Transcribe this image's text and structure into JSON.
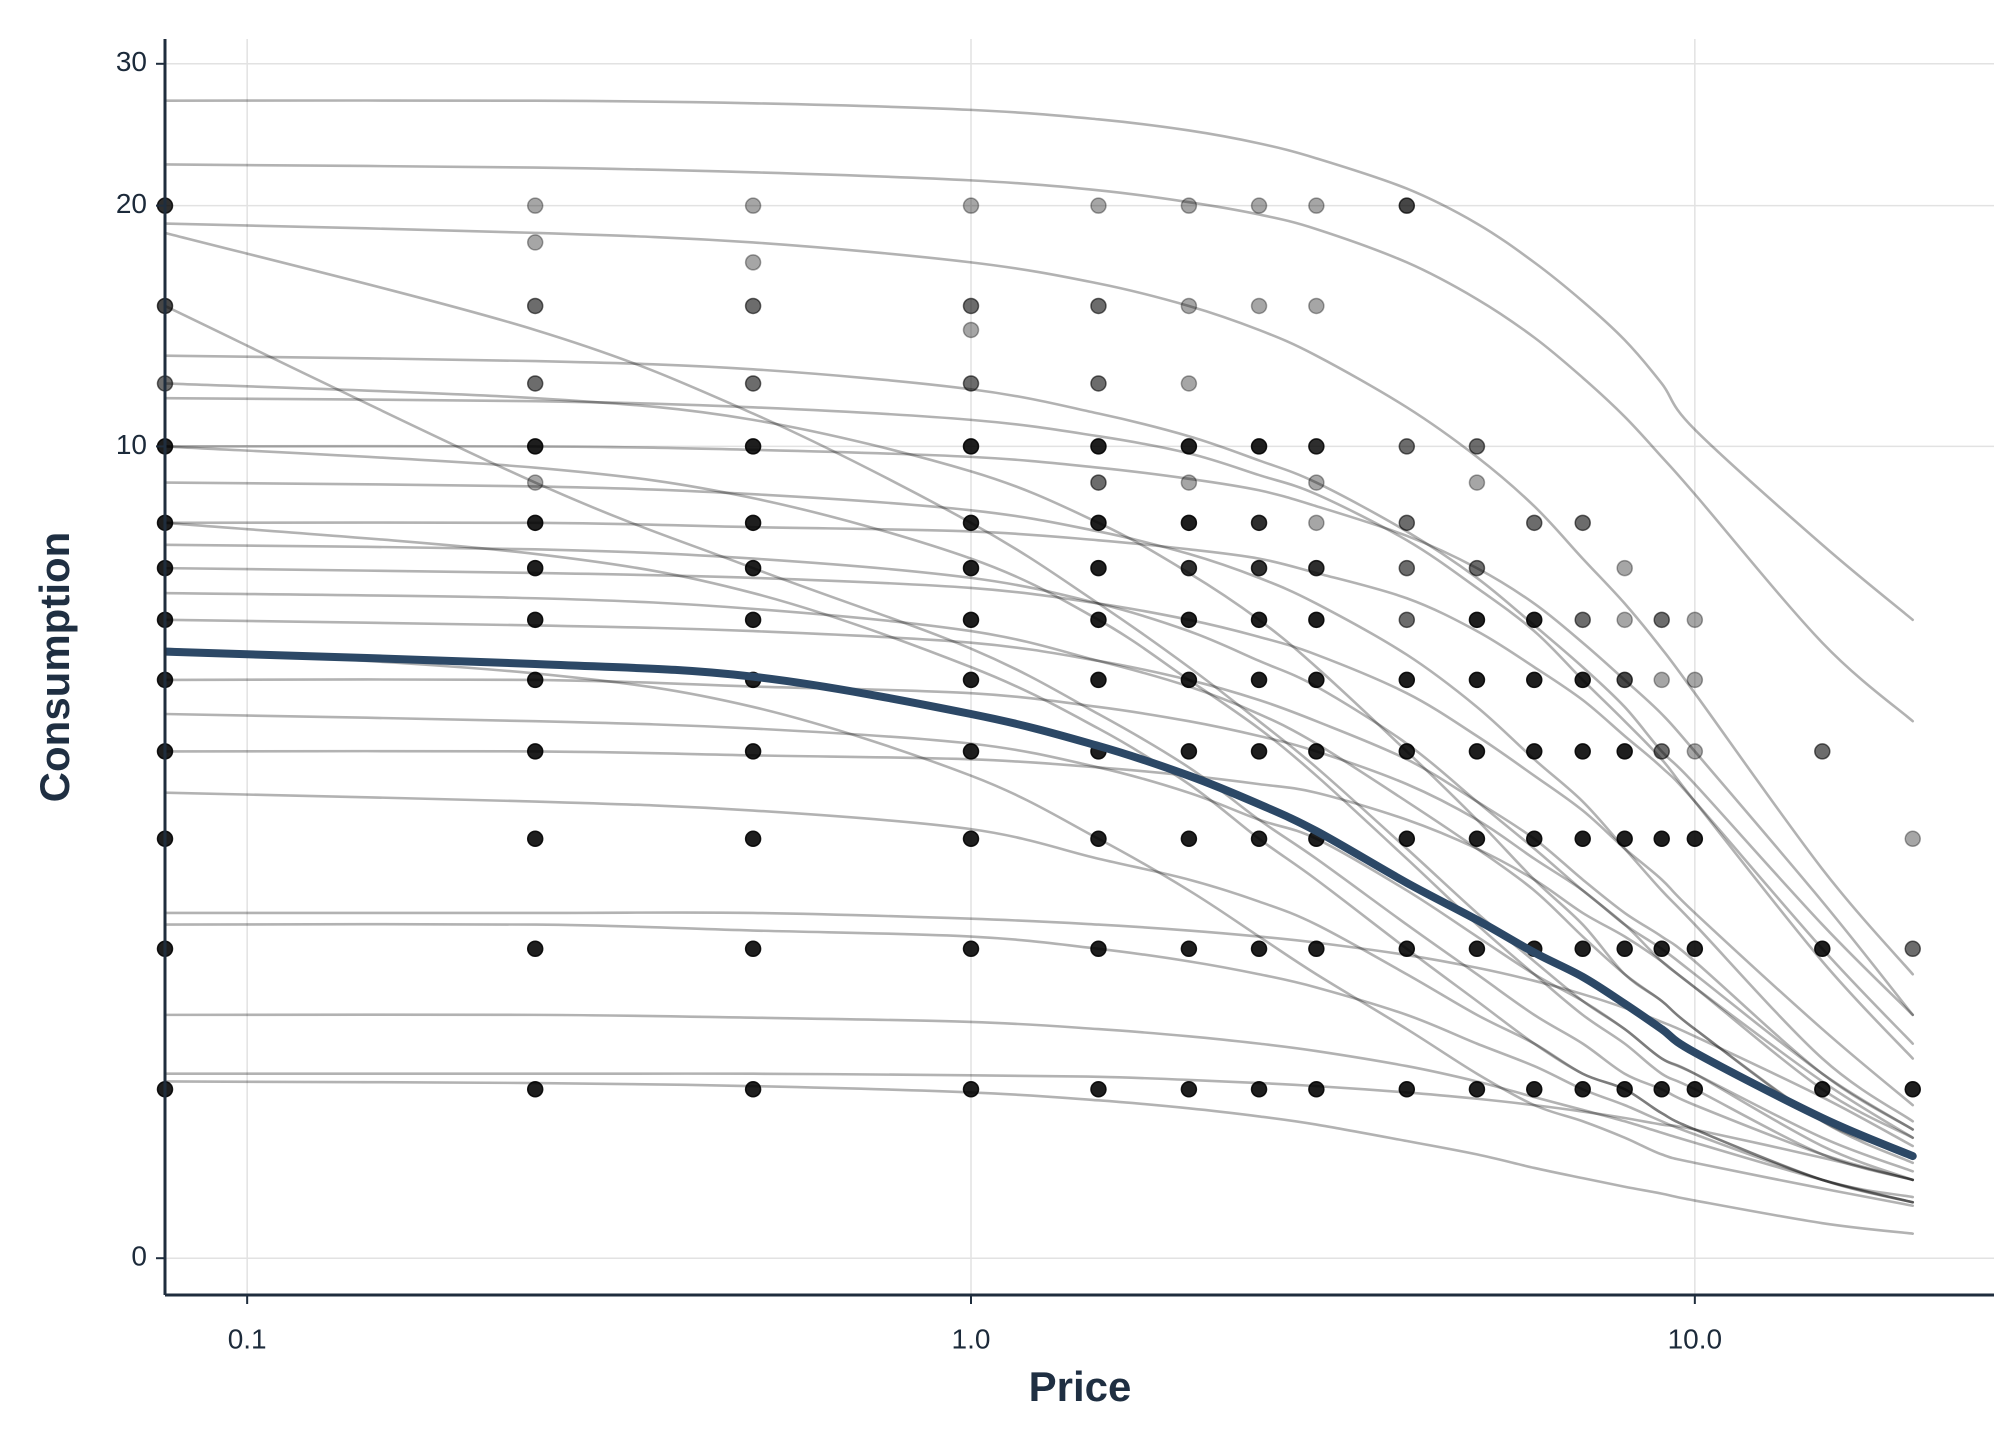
{
  "chart_data": {
    "type": "line",
    "x_label": "Price",
    "y_label": "Consumption",
    "xscale": "log",
    "yscale": "pseudo_log",
    "xlim": [
      0.077,
      25.9
    ],
    "ylim": [
      -0.21,
      32.2
    ],
    "xticks": [
      {
        "value": 0.1,
        "label": "0.1"
      },
      {
        "value": 1,
        "label": "1.0"
      },
      {
        "value": 10,
        "label": "10.0"
      }
    ],
    "yticks": [
      0,
      10,
      20,
      30
    ],
    "grid": true,
    "x": [
      0.077,
      0.25,
      0.5,
      1,
      1.5,
      2,
      2.5,
      3,
      4,
      5,
      6,
      7,
      8,
      9,
      10,
      15,
      20
    ],
    "curve_color": "#000000",
    "curve_alpha": 0.3,
    "series": [
      {
        "values": [
          27,
          27,
          26.8,
          26.3,
          25.6,
          24.8,
          23.9,
          22.9,
          21,
          19,
          17,
          15.2,
          13.6,
          12,
          10.5,
          7.5,
          6
        ]
      },
      {
        "values": [
          22.5,
          22.3,
          22,
          21.5,
          20.9,
          20.2,
          19.5,
          18.7,
          17,
          15.3,
          13.7,
          12.2,
          10.9,
          9.7,
          8.7,
          5.6,
          4.4
        ]
      },
      {
        "values": [
          19,
          18.5,
          18,
          17,
          16,
          15,
          14,
          13,
          11.2,
          9.7,
          8.4,
          7.2,
          6.3,
          5.5,
          4.8,
          2.7,
          1.8
        ]
      },
      {
        "values": [
          18.5,
          14,
          11,
          8,
          6.3,
          5.2,
          4.4,
          3.8,
          2.9,
          2.3,
          1.9,
          1.6,
          1.4,
          1.2,
          1.1,
          0.7,
          0.5
        ]
      },
      {
        "values": [
          15,
          9,
          7,
          5.5,
          4.5,
          3.8,
          3.2,
          2.8,
          2.2,
          1.8,
          1.5,
          1.3,
          1.1,
          1,
          0.9,
          0.6,
          0.45
        ]
      },
      {
        "values": [
          13,
          12.8,
          12.5,
          11.8,
          11,
          10.3,
          9.6,
          9,
          7.8,
          6.8,
          5.9,
          5.2,
          4.6,
          4,
          3.6,
          2.2,
          1.5
        ]
      },
      {
        "values": [
          12,
          11.5,
          10.8,
          9.3,
          8,
          6.9,
          6,
          5.2,
          4,
          3.2,
          2.6,
          2.2,
          1.8,
          1.6,
          1.4,
          0.8,
          0.6
        ]
      },
      {
        "values": [
          11.5,
          11.4,
          11.2,
          10.8,
          10.3,
          9.8,
          9.2,
          8.7,
          7.6,
          6.6,
          5.8,
          5,
          4.4,
          3.9,
          3.4,
          1.9,
          1.2
        ]
      },
      {
        "values": [
          10,
          10,
          9.9,
          9.7,
          9.4,
          9.1,
          8.8,
          8.4,
          7.7,
          7,
          6.3,
          5.6,
          5,
          4.5,
          4,
          2.4,
          1.5
        ]
      },
      {
        "values": [
          10,
          9.4,
          8.6,
          7.2,
          6,
          5,
          4.3,
          3.7,
          2.8,
          2.2,
          1.8,
          1.5,
          1.3,
          1.1,
          1,
          0.6,
          0.45
        ]
      },
      {
        "values": [
          9,
          8.9,
          8.7,
          8.3,
          7.8,
          7.3,
          6.8,
          6.3,
          5.4,
          4.6,
          3.9,
          3.4,
          2.9,
          2.5,
          2.2,
          1.2,
          0.8
        ]
      },
      {
        "values": [
          8,
          8,
          7.9,
          7.8,
          7.6,
          7.4,
          7.2,
          6.9,
          6.4,
          5.8,
          5.2,
          4.7,
          4.2,
          3.8,
          3.4,
          2,
          1.3
        ]
      },
      {
        "values": [
          8,
          7.3,
          6.5,
          5.2,
          4.3,
          3.6,
          3,
          2.6,
          2,
          1.6,
          1.3,
          1.1,
          1,
          0.85,
          0.75,
          0.45,
          0.35
        ]
      },
      {
        "values": [
          7.5,
          7.4,
          7.2,
          6.8,
          6.3,
          5.8,
          5.3,
          4.9,
          4.1,
          3.4,
          2.9,
          2.5,
          2.2,
          1.9,
          1.7,
          1,
          0.7
        ]
      },
      {
        "values": [
          7,
          6.9,
          6.8,
          6.6,
          6.3,
          6,
          5.7,
          5.4,
          4.8,
          4.2,
          3.7,
          3.3,
          2.9,
          2.6,
          2.3,
          1.4,
          0.9
        ]
      },
      {
        "values": [
          6.5,
          6.4,
          6.2,
          5.8,
          5.3,
          4.9,
          4.5,
          4.1,
          3.4,
          2.9,
          2.5,
          2.1,
          1.8,
          1.6,
          1.4,
          0.8,
          0.55
        ]
      },
      {
        "values": [
          6,
          5.9,
          5.8,
          5.6,
          5.3,
          5,
          4.7,
          4.4,
          3.9,
          3.4,
          3,
          2.6,
          2.3,
          2.1,
          1.9,
          1.1,
          0.75
        ]
      },
      {
        "values": [
          5.5,
          5.1,
          4.6,
          3.7,
          3,
          2.5,
          2.1,
          1.8,
          1.4,
          1.1,
          0.9,
          0.8,
          0.7,
          0.6,
          0.55,
          0.4,
          0.3
        ]
      },
      {
        "values": [
          5,
          5,
          4.9,
          4.8,
          4.6,
          4.4,
          4.2,
          4,
          3.6,
          3.2,
          2.8,
          2.5,
          2.2,
          2,
          1.8,
          1.1,
          0.75
        ]
      },
      {
        "values": [
          4.5,
          4.4,
          4.3,
          4.1,
          3.8,
          3.5,
          3.2,
          3,
          2.5,
          2.1,
          1.8,
          1.6,
          1.4,
          1.2,
          1.1,
          0.65,
          0.45
        ]
      },
      {
        "values": [
          4,
          4,
          3.95,
          3.9,
          3.8,
          3.7,
          3.6,
          3.5,
          3.2,
          2.9,
          2.6,
          2.3,
          2.1,
          1.9,
          1.7,
          1.05,
          0.7
        ]
      },
      {
        "values": [
          3.5,
          3.4,
          3.3,
          3.1,
          2.8,
          2.6,
          2.4,
          2.2,
          1.8,
          1.5,
          1.3,
          1.1,
          1,
          0.85,
          0.75,
          0.45,
          0.32
        ]
      },
      {
        "values": [
          2.3,
          2.3,
          2.3,
          2.25,
          2.2,
          2.15,
          2.1,
          2.05,
          1.95,
          1.85,
          1.75,
          1.65,
          1.55,
          1.45,
          1.35,
          0.95,
          0.65
        ]
      },
      {
        "values": [
          2.2,
          2.2,
          2.15,
          2.1,
          2,
          1.9,
          1.8,
          1.7,
          1.5,
          1.3,
          1.15,
          1,
          0.9,
          0.8,
          0.72,
          0.45,
          0.32
        ]
      },
      {
        "values": [
          1.5,
          1.5,
          1.48,
          1.45,
          1.4,
          1.35,
          1.3,
          1.25,
          1.15,
          1.05,
          0.95,
          0.87,
          0.8,
          0.73,
          0.67,
          0.45,
          0.32
        ]
      },
      {
        "values": [
          1.1,
          1.1,
          1.1,
          1.09,
          1.08,
          1.06,
          1.04,
          1.02,
          0.98,
          0.94,
          0.9,
          0.86,
          0.82,
          0.78,
          0.75,
          0.58,
          0.45
        ]
      },
      {
        "values": [
          1.05,
          1.04,
          1.02,
          0.98,
          0.93,
          0.88,
          0.83,
          0.78,
          0.68,
          0.6,
          0.52,
          0.46,
          0.41,
          0.37,
          0.33,
          0.2,
          0.14
        ]
      }
    ],
    "mean": {
      "color": "#2c4866",
      "values": [
        5.45,
        5.25,
        5.05,
        4.5,
        4.07,
        3.7,
        3.37,
        3.08,
        2.57,
        2.24,
        1.97,
        1.78,
        1.58,
        1.4,
        1.24,
        0.82,
        0.59
      ]
    },
    "points": {
      "color": "#000000",
      "x": [
        0.077,
        0.25,
        0.5,
        1,
        1.5,
        2,
        2.5,
        3,
        4,
        0.25,
        0.5,
        0.077,
        0.25,
        0.5,
        1,
        1.5,
        2,
        2.5,
        3,
        1,
        0.077,
        0.25,
        0.5,
        1,
        1.5,
        2,
        0.077,
        0.25,
        0.5,
        1,
        1.5,
        2,
        2.5,
        3,
        4,
        5,
        0.25,
        1.5,
        2,
        3,
        5,
        0.077,
        0.25,
        0.5,
        1,
        1.5,
        2,
        2.5,
        3,
        4,
        6,
        7,
        0.077,
        0.25,
        0.5,
        1,
        1.5,
        2,
        2.5,
        3,
        4,
        5,
        8,
        0.077,
        0.25,
        0.5,
        1,
        1.5,
        2,
        2.5,
        3,
        4,
        5,
        6,
        7,
        8,
        9,
        10,
        0.077,
        0.25,
        0.5,
        1,
        1.5,
        2,
        2.5,
        3,
        4,
        5,
        6,
        7,
        8,
        9,
        10,
        0.077,
        0.25,
        0.5,
        1,
        1.5,
        2,
        2.5,
        3,
        4,
        5,
        6,
        7,
        8,
        9,
        10,
        15,
        0.077,
        0.25,
        0.5,
        1,
        1.5,
        2,
        2.5,
        3,
        4,
        5,
        6,
        7,
        8,
        9,
        10,
        20,
        0.077,
        0.25,
        0.5,
        1,
        1.5,
        2,
        2.5,
        3,
        4,
        5,
        6,
        7,
        8,
        9,
        10,
        15,
        20,
        0.077,
        0.25,
        0.5,
        1,
        1.5,
        2,
        2.5,
        3,
        4,
        5,
        6,
        7,
        8,
        9,
        10,
        15,
        20
      ],
      "y": [
        20,
        20,
        20,
        20,
        20,
        20,
        20,
        20,
        20,
        18,
        17,
        15,
        15,
        15,
        15,
        15,
        15,
        15,
        15,
        14,
        12,
        12,
        12,
        12,
        12,
        12,
        10,
        10,
        10,
        10,
        10,
        10,
        10,
        10,
        10,
        10,
        9,
        9,
        9,
        9,
        9,
        8,
        8,
        8,
        8,
        8,
        8,
        8,
        8,
        8,
        8,
        8,
        7,
        7,
        7,
        7,
        7,
        7,
        7,
        7,
        7,
        7,
        7,
        6,
        6,
        6,
        6,
        6,
        6,
        6,
        6,
        6,
        6,
        6,
        6,
        6,
        6,
        6,
        5,
        5,
        5,
        5,
        5,
        5,
        5,
        5,
        5,
        5,
        5,
        5,
        5,
        5,
        5,
        4,
        4,
        4,
        4,
        4,
        4,
        4,
        4,
        4,
        4,
        4,
        4,
        4,
        4,
        4,
        4,
        3,
        3,
        3,
        3,
        3,
        3,
        3,
        3,
        3,
        3,
        3,
        3,
        3,
        3,
        3,
        3,
        2,
        2,
        2,
        2,
        2,
        2,
        2,
        2,
        2,
        2,
        2,
        2,
        2,
        2,
        2,
        2,
        2,
        1,
        1,
        1,
        1,
        1,
        1,
        1,
        1,
        1,
        1,
        1,
        1,
        1,
        1,
        1,
        1,
        1
      ],
      "n": [
        4,
        1,
        1,
        1,
        1,
        1,
        1,
        1,
        3,
        1,
        1,
        3,
        2,
        2,
        2,
        2,
        1,
        1,
        1,
        1,
        2,
        2,
        2,
        2,
        2,
        1,
        5,
        5,
        5,
        5,
        5,
        5,
        5,
        4,
        2,
        2,
        1,
        2,
        1,
        1,
        1,
        5,
        5,
        5,
        5,
        5,
        5,
        4,
        1,
        2,
        2,
        2,
        5,
        5,
        5,
        5,
        5,
        4,
        4,
        4,
        2,
        2,
        1,
        5,
        5,
        5,
        5,
        5,
        5,
        5,
        5,
        2,
        5,
        5,
        2,
        1,
        2,
        1,
        5,
        5,
        5,
        5,
        5,
        5,
        5,
        5,
        5,
        5,
        5,
        5,
        3,
        1,
        1,
        5,
        5,
        5,
        5,
        5,
        5,
        5,
        5,
        5,
        5,
        5,
        5,
        5,
        2,
        1,
        2,
        5,
        5,
        5,
        5,
        5,
        5,
        5,
        5,
        5,
        5,
        5,
        5,
        5,
        5,
        5,
        1,
        5,
        5,
        5,
        5,
        5,
        5,
        5,
        5,
        5,
        5,
        5,
        5,
        5,
        5,
        5,
        5,
        2,
        5,
        5,
        5,
        5,
        5,
        5,
        5,
        5,
        5,
        5,
        5,
        5,
        5,
        5,
        5,
        5,
        5
      ]
    }
  }
}
